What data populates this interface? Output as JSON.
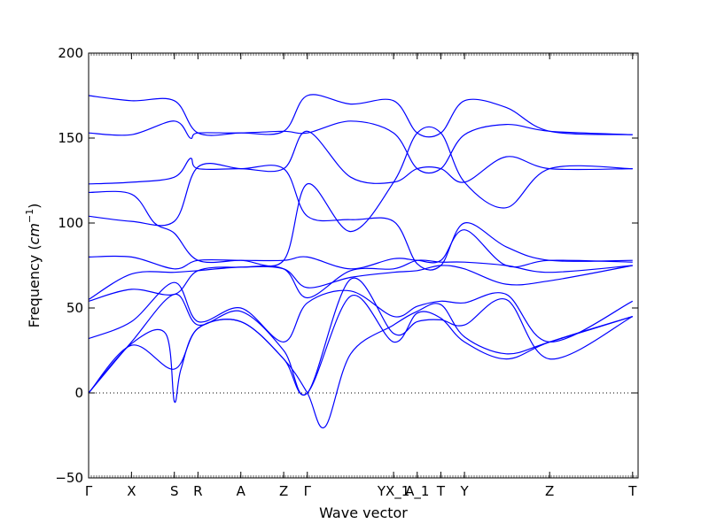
{
  "chart_data": {
    "type": "line",
    "title": "",
    "xlabel": "Wave vector",
    "ylabel_prefix": "Frequency (",
    "ylabel_unit": "cm",
    "ylabel_exp": "−1",
    "ylabel_suffix": ")",
    "ylim": [
      -50,
      200
    ],
    "yticks": [
      {
        "value": -50,
        "label": "−50"
      },
      {
        "value": 0,
        "label": "0"
      },
      {
        "value": 50,
        "label": "50"
      },
      {
        "value": 100,
        "label": "100"
      },
      {
        "value": 150,
        "label": "150"
      },
      {
        "value": 200,
        "label": "200"
      }
    ],
    "xlim": [
      0,
      10.0
    ],
    "xticks": [
      {
        "pos": 0.0,
        "label": "Γ"
      },
      {
        "pos": 0.78,
        "label": "X"
      },
      {
        "pos": 1.56,
        "label": "S"
      },
      {
        "pos": 1.99,
        "label": "R"
      },
      {
        "pos": 2.77,
        "label": "A"
      },
      {
        "pos": 3.55,
        "label": "Z"
      },
      {
        "pos": 3.98,
        "label": "Γ"
      },
      {
        "pos": 5.55,
        "label": "YX_1"
      },
      {
        "pos": 5.98,
        "label": "A_1"
      },
      {
        "pos": 6.41,
        "label": "T"
      },
      {
        "pos": 6.84,
        "label": "Y"
      },
      {
        "pos": 8.39,
        "label": "Z"
      },
      {
        "pos": 9.9,
        "label": "T"
      }
    ],
    "zero_line": true,
    "line_color": "#0000ff",
    "series": [
      {
        "x": [
          0,
          0.78,
          1.56,
          1.99,
          2.77,
          3.55,
          3.98,
          4.77,
          5.55,
          5.98,
          6.41,
          6.84,
          7.6,
          8.39,
          9.9
        ],
        "y": [
          175,
          172,
          172,
          153,
          153,
          154,
          175,
          170,
          172,
          153,
          153,
          172,
          168,
          154,
          152
        ]
      },
      {
        "x": [
          0,
          0.78,
          1.56,
          1.85,
          1.99,
          2.77,
          3.55,
          3.98,
          4.77,
          5.55,
          5.98,
          6.41,
          6.84,
          7.6,
          8.39,
          9.9
        ],
        "y": [
          153,
          152,
          160,
          150,
          153,
          153,
          154,
          153,
          160,
          153,
          132,
          132,
          152,
          158,
          154,
          152
        ]
      },
      {
        "x": [
          0,
          0.78,
          1.56,
          1.85,
          1.99,
          2.77,
          3.55,
          3.98,
          4.77,
          5.55,
          5.98,
          6.41,
          6.84,
          7.6,
          8.39,
          9.9
        ],
        "y": [
          123,
          124,
          127,
          138,
          132,
          132,
          132,
          154,
          127,
          124,
          132,
          132,
          124,
          139,
          132,
          132
        ]
      },
      {
        "x": [
          0,
          0.78,
          1.2,
          1.56,
          1.99,
          2.77,
          3.55,
          3.98,
          4.77,
          5.55,
          5.98,
          6.41,
          6.84,
          7.6,
          8.39,
          9.9
        ],
        "y": [
          118,
          117,
          100,
          94,
          78,
          78,
          78,
          123,
          95,
          124,
          153,
          153,
          124,
          109,
          132,
          132
        ]
      },
      {
        "x": [
          0,
          0.78,
          1.56,
          1.99,
          2.77,
          3.55,
          3.98,
          4.77,
          5.55,
          5.98,
          6.41,
          6.84,
          7.6,
          8.39,
          9.9
        ],
        "y": [
          104,
          101,
          101,
          133,
          132,
          132,
          104,
          102,
          101,
          76,
          75,
          100,
          86,
          78,
          78
        ]
      },
      {
        "x": [
          0,
          0.78,
          1.56,
          1.99,
          2.77,
          3.55,
          3.98,
          4.77,
          5.55,
          5.98,
          6.41,
          6.84,
          7.6,
          8.39,
          9.9
        ],
        "y": [
          80,
          80,
          73,
          78,
          78,
          78,
          80,
          73,
          79,
          78,
          78,
          96,
          75,
          78,
          77
        ]
      },
      {
        "x": [
          0,
          0.78,
          1.56,
          1.99,
          2.77,
          3.55,
          3.98,
          4.77,
          5.55,
          5.98,
          6.41,
          6.84,
          7.6,
          8.39,
          9.9
        ],
        "y": [
          55,
          70,
          71,
          72,
          74,
          73,
          56,
          72,
          73,
          78,
          77,
          77,
          75,
          71,
          75
        ]
      },
      {
        "x": [
          0,
          0.78,
          1.56,
          1.99,
          2.77,
          3.55,
          3.98,
          4.77,
          5.55,
          5.98,
          6.41,
          6.84,
          7.6,
          8.39,
          9.9
        ],
        "y": [
          54,
          61,
          58,
          72,
          74,
          73,
          62,
          68,
          71,
          72,
          75,
          73,
          64,
          66,
          75
        ]
      },
      {
        "x": [
          0,
          0.78,
          1.56,
          1.99,
          2.77,
          3.55,
          3.98,
          4.77,
          5.55,
          5.98,
          6.41,
          6.84,
          7.6,
          8.39,
          9.9
        ],
        "y": [
          32,
          42,
          65,
          42,
          50,
          30,
          53,
          60,
          45,
          51,
          54,
          53,
          58,
          30,
          54
        ]
      },
      {
        "x": [
          0,
          0.78,
          1.56,
          1.99,
          2.77,
          3.55,
          3.98,
          4.77,
          5.55,
          5.98,
          6.41,
          6.84,
          7.6,
          8.39,
          9.9
        ],
        "y": [
          0,
          30,
          58,
          40,
          48,
          25,
          0,
          67,
          35,
          42,
          43,
          40,
          55,
          20,
          45
        ]
      },
      {
        "x": [
          0,
          0.78,
          1.56,
          1.99,
          2.77,
          3.55,
          3.98,
          4.77,
          5.55,
          5.98,
          6.41,
          6.84,
          7.6,
          8.39,
          9.9
        ],
        "y": [
          0,
          28,
          14,
          38,
          42,
          20,
          0,
          57,
          30,
          47,
          44,
          30,
          20,
          30,
          45
        ]
      },
      {
        "x": [
          0,
          0.78,
          1.4,
          1.56,
          1.68,
          1.99,
          2.77,
          3.55,
          3.98,
          4.3,
          4.77,
          5.55,
          5.98,
          6.41,
          6.84,
          7.6,
          8.39,
          9.9
        ],
        "y": [
          0,
          29,
          35,
          -5,
          14,
          38,
          42,
          20,
          0,
          -20,
          23,
          40,
          48,
          52,
          33,
          23,
          30,
          45
        ]
      }
    ]
  }
}
